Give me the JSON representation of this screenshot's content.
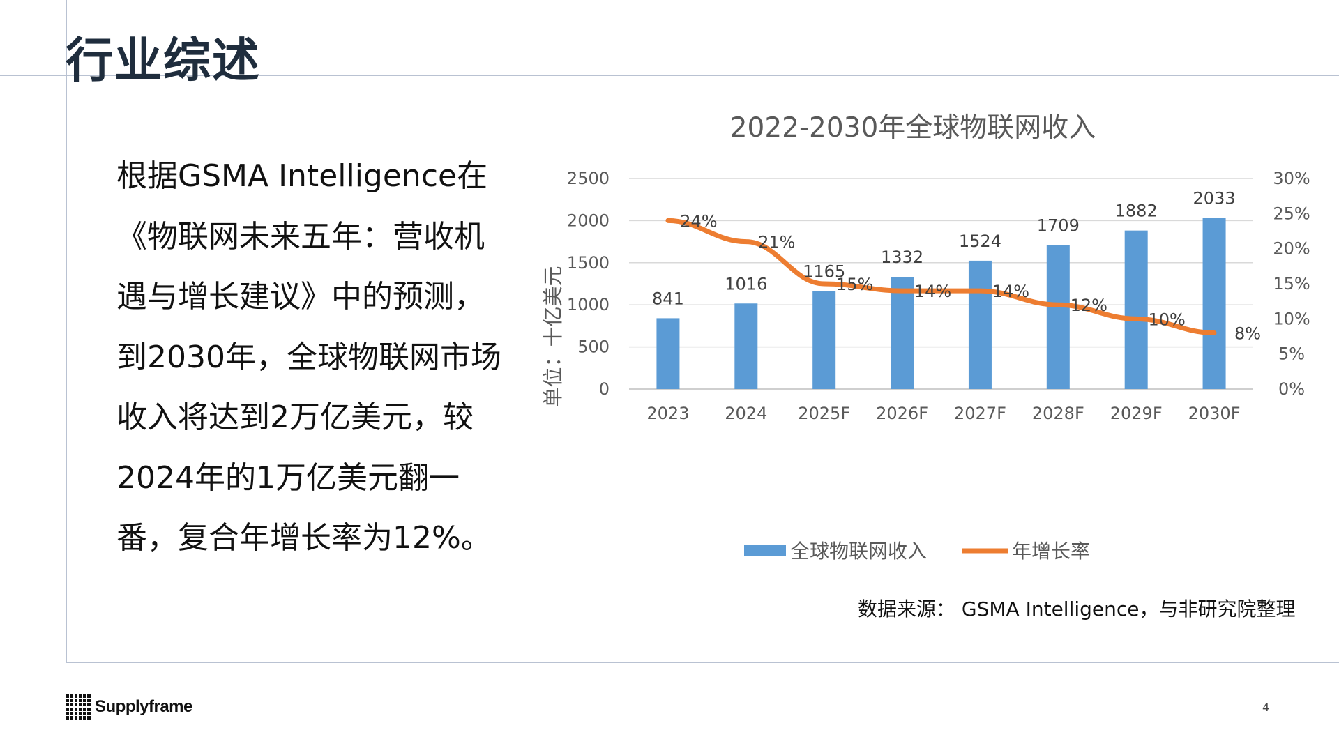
{
  "slide": {
    "title": "行业综述",
    "body": "根据GSMA Intelligence在《物联网未来五年：营收机遇与增长建议》中的预测，到2030年，全球物联网市场收入将达到2万亿美元，较2024年的1万亿美元翻一番，复合年增长率为12%。",
    "source": "数据来源： GSMA Intelligence，与非研究院整理",
    "logo_text": "Supplyframe",
    "page_number": "4"
  },
  "chart_data": {
    "type": "bar",
    "title": "2022-2030年全球物联网收入",
    "ylabel": "单位：十亿美元",
    "categories": [
      "2023",
      "2024",
      "2025F",
      "2026F",
      "2027F",
      "2028F",
      "2029F",
      "2030F"
    ],
    "ylim": [
      0,
      2500
    ],
    "yticks": [
      "0",
      "500",
      "1000",
      "1500",
      "2000",
      "2500"
    ],
    "y2lim": [
      0,
      0.3
    ],
    "y2ticks": [
      "0%",
      "5%",
      "10%",
      "15%",
      "20%",
      "25%",
      "30%"
    ],
    "grid": true,
    "legend_position": "bottom",
    "series": [
      {
        "name": "全球物联网收入",
        "type": "bar",
        "axis": "left",
        "color": "#5b9bd5",
        "values": [
          841,
          1016,
          1165,
          1332,
          1524,
          1709,
          1882,
          2033
        ],
        "labels": [
          "841",
          "1016",
          "1165",
          "1332",
          "1524",
          "1709",
          "1882",
          "2033"
        ]
      },
      {
        "name": "年增长率",
        "type": "line",
        "axis": "right",
        "color": "#ed7d31",
        "values": [
          0.24,
          0.21,
          0.15,
          0.14,
          0.14,
          0.12,
          0.1,
          0.08
        ],
        "labels": [
          "24%",
          "21%",
          "15%",
          "14%",
          "14%",
          "12%",
          "10%",
          "8%"
        ]
      }
    ]
  }
}
